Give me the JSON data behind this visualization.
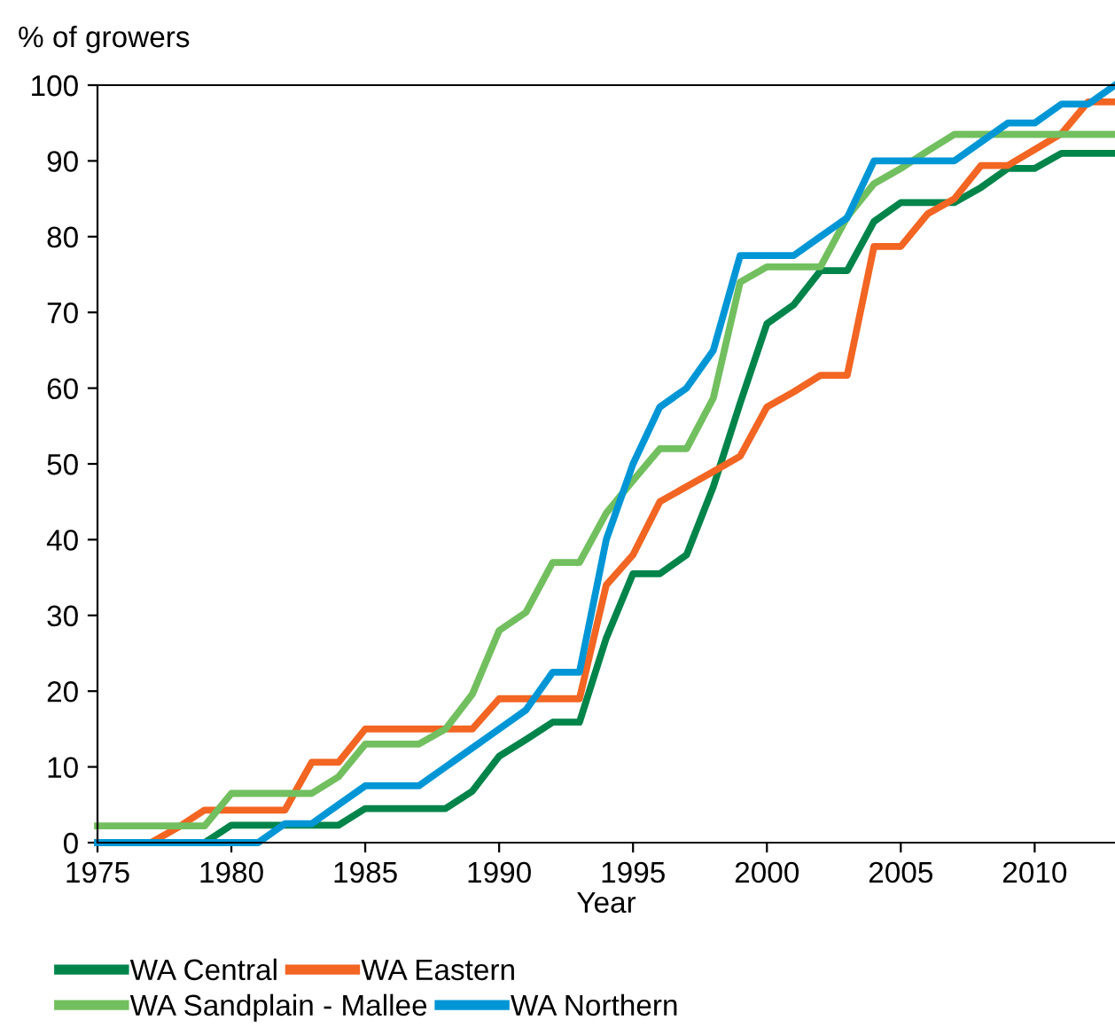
{
  "chart_data": {
    "type": "line",
    "ylabel": "% of growers",
    "xlabel": "Year",
    "x": [
      1975,
      1976,
      1977,
      1978,
      1979,
      1980,
      1981,
      1982,
      1983,
      1984,
      1985,
      1986,
      1987,
      1988,
      1989,
      1990,
      1991,
      1992,
      1993,
      1994,
      1995,
      1996,
      1997,
      1998,
      1999,
      2000,
      2001,
      2002,
      2003,
      2004,
      2005,
      2006,
      2007,
      2008,
      2009,
      2010,
      2011,
      2012,
      2013
    ],
    "series": [
      {
        "name": "WA Central",
        "color": "#00844a",
        "values": [
          null,
          null,
          null,
          0,
          0,
          2.3,
          2.3,
          2.3,
          2.3,
          2.3,
          4.5,
          4.5,
          4.5,
          4.5,
          6.8,
          11.4,
          13.6,
          15.9,
          15.9,
          27,
          35.5,
          35.5,
          38,
          47,
          58,
          68.5,
          71,
          75.5,
          75.5,
          82,
          84.5,
          84.5,
          84.5,
          86.5,
          89,
          89,
          91,
          91,
          91
        ]
      },
      {
        "name": "WA Eastern",
        "color": "#f26522",
        "values": [
          0,
          0,
          0,
          2,
          4.3,
          4.3,
          4.3,
          4.3,
          10.6,
          10.6,
          15,
          15,
          15,
          15,
          15,
          19,
          19,
          19,
          19,
          34,
          38,
          45,
          47,
          49,
          51,
          57.5,
          59.5,
          61.7,
          61.7,
          78.7,
          78.7,
          83,
          85,
          89.4,
          89.4,
          91.5,
          93.6,
          97.8,
          97.8
        ]
      },
      {
        "name": "WA Sandplain - Mallee",
        "color": "#72bf5f",
        "values": [
          2.2,
          2.2,
          2.2,
          2.2,
          2.2,
          6.5,
          6.5,
          6.5,
          6.5,
          8.7,
          13,
          13,
          13,
          15,
          19.6,
          28,
          30.4,
          37,
          37,
          43.5,
          47.8,
          52,
          52,
          58.7,
          74,
          76,
          76,
          76,
          82.6,
          87,
          89,
          91.3,
          93.5,
          93.5,
          93.5,
          93.5,
          93.5,
          93.5,
          93.5
        ]
      },
      {
        "name": "WA Northern",
        "color": "#0096d6",
        "values": [
          0,
          0,
          0,
          0,
          0,
          0,
          0,
          2.5,
          2.5,
          5,
          7.5,
          7.5,
          7.5,
          10,
          12.5,
          15,
          17.5,
          22.5,
          22.5,
          40,
          50,
          57.5,
          60,
          65,
          77.5,
          77.5,
          77.5,
          80,
          82.5,
          90,
          90,
          90,
          90,
          92.5,
          95,
          95,
          97.5,
          97.5,
          100
        ]
      }
    ],
    "xlim": [
      1975,
      2013
    ],
    "xticks": [
      1975,
      1980,
      1985,
      1990,
      1995,
      2000,
      2005,
      2010
    ],
    "ylim": [
      0,
      100
    ],
    "yticks": [
      0,
      10,
      20,
      30,
      40,
      50,
      60,
      70,
      80,
      90,
      100
    ],
    "grid": false,
    "legend": "bottom",
    "marker": "none",
    "line_style": "solid"
  }
}
